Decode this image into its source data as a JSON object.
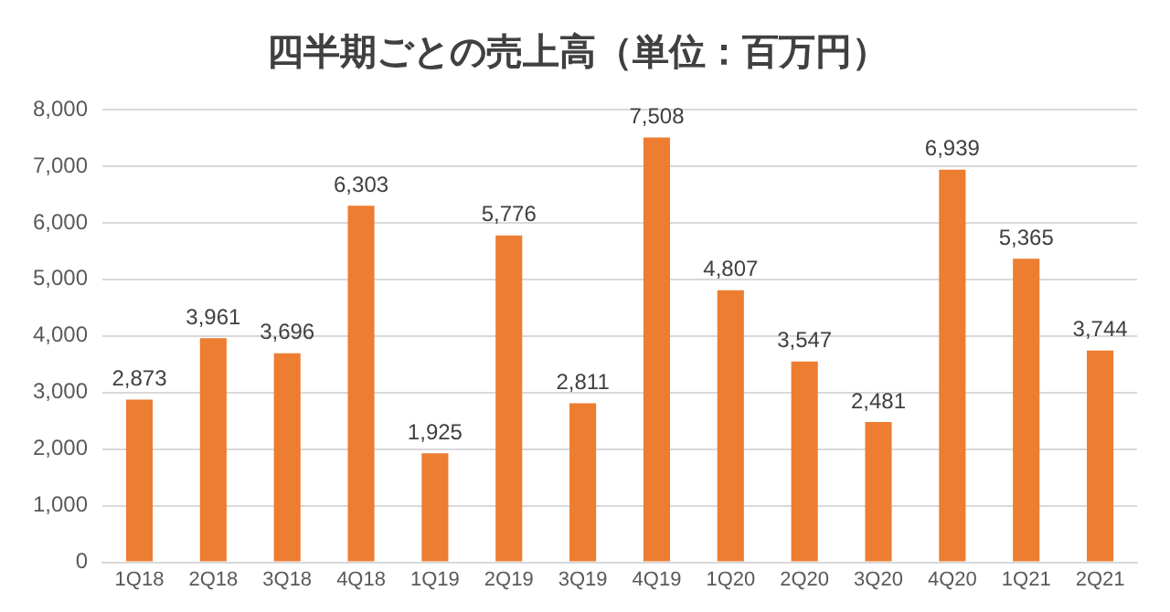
{
  "chart_data": {
    "type": "bar",
    "title": "四半期ごとの売上高（単位：百万円）",
    "categories": [
      "1Q18",
      "2Q18",
      "3Q18",
      "4Q18",
      "1Q19",
      "2Q19",
      "3Q19",
      "4Q19",
      "1Q20",
      "2Q20",
      "3Q20",
      "4Q20",
      "1Q21",
      "2Q21"
    ],
    "values": [
      2873,
      3961,
      3696,
      6303,
      1925,
      5776,
      2811,
      7508,
      4807,
      3547,
      2481,
      6939,
      5365,
      3744
    ],
    "value_labels": [
      "2,873",
      "3,961",
      "3,696",
      "6,303",
      "1,925",
      "5,776",
      "2,811",
      "7,508",
      "4,807",
      "3,547",
      "2,481",
      "6,939",
      "5,365",
      "3,744"
    ],
    "color": "#ed7d31",
    "ylim": [
      0,
      8000
    ],
    "yticks": [
      {
        "value": 0,
        "label": "0"
      },
      {
        "value": 1000,
        "label": "1,000"
      },
      {
        "value": 2000,
        "label": "2,000"
      },
      {
        "value": 3000,
        "label": "3,000"
      },
      {
        "value": 4000,
        "label": "4,000"
      },
      {
        "value": 5000,
        "label": "5,000"
      },
      {
        "value": 6000,
        "label": "6,000"
      },
      {
        "value": 7000,
        "label": "7,000"
      },
      {
        "value": 8000,
        "label": "8,000"
      }
    ],
    "grid": "y"
  }
}
